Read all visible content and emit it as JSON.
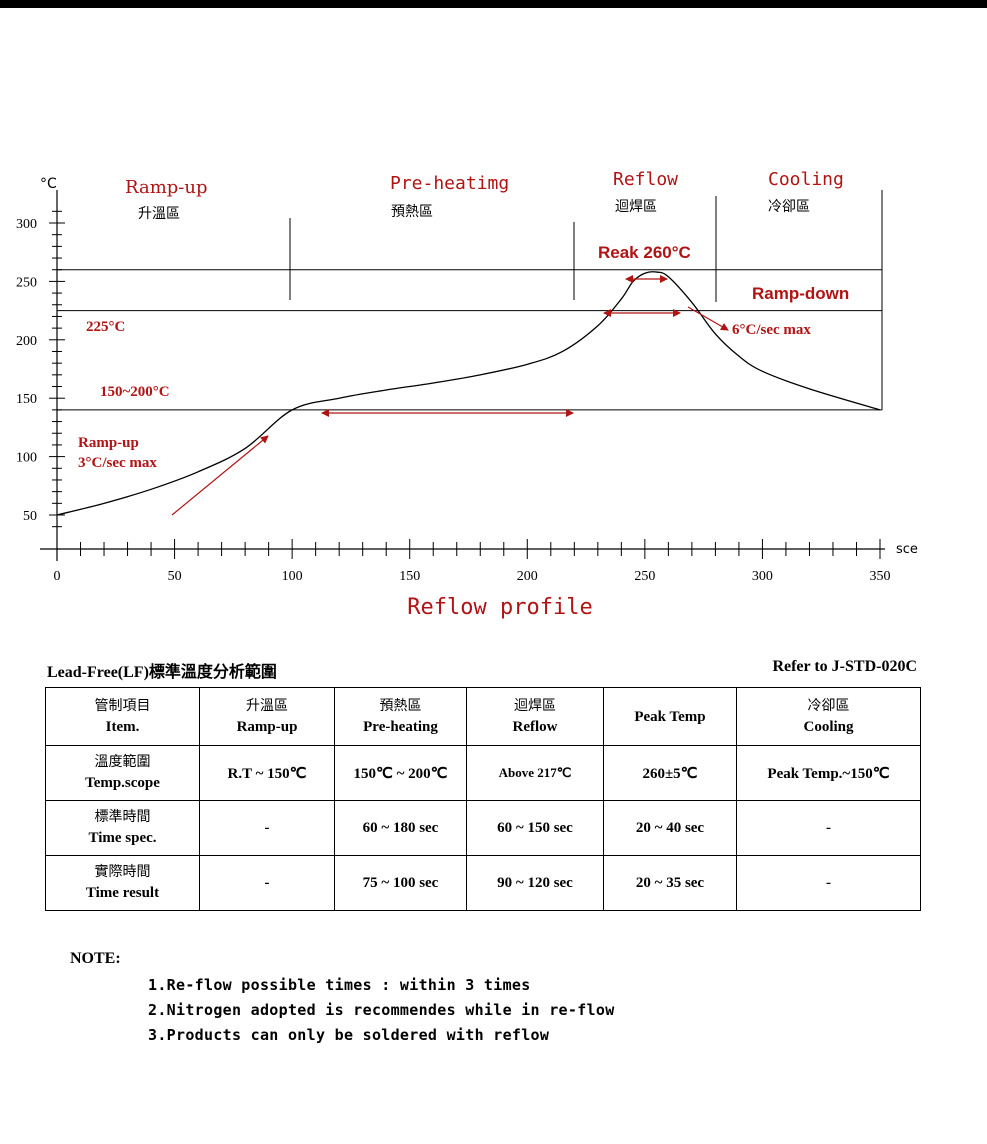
{
  "chart_data": {
    "type": "line",
    "title": "Reflow profile",
    "xlabel": "sce",
    "ylabel": "°C",
    "xlim": [
      0,
      350
    ],
    "ylim": [
      30,
      310
    ],
    "x_ticks": [
      0,
      50,
      100,
      150,
      200,
      250,
      300,
      350
    ],
    "y_ticks": [
      50,
      100,
      150,
      200,
      250,
      300
    ],
    "series": [
      {
        "x": [
          0,
          20,
          40,
          60,
          80,
          100,
          120,
          140,
          160,
          180,
          200,
          215,
          230,
          240,
          245,
          250,
          255,
          260,
          270,
          280,
          290,
          300,
          320,
          350
        ],
        "y": [
          50,
          60,
          72,
          87,
          107,
          140,
          150,
          157,
          163,
          170,
          179,
          190,
          212,
          235,
          250,
          257,
          258,
          254,
          232,
          205,
          186,
          173,
          158,
          140
        ]
      }
    ],
    "hlines": [
      140,
      225,
      260
    ],
    "zones": [
      {
        "en": "Ramp-up",
        "zh": "升溫區"
      },
      {
        "en": "Pre-heatimg",
        "zh": "預熱區"
      },
      {
        "en": "Reflow",
        "zh": "迴焊區"
      },
      {
        "en": "Cooling",
        "zh": "冷卻區"
      }
    ],
    "annotations": {
      "peak": "Reak 260°C",
      "ramp_down": "Ramp-down",
      "t225": "225°C",
      "rate_down": "6°C/sec max",
      "range": "150~200°C",
      "ramp_up_1": "Ramp-up",
      "ramp_up_2": "3°C/sec max"
    }
  },
  "table": {
    "title": "Lead-Free(LF)標準溫度分析範圍",
    "refer": "Refer to J-STD-020C",
    "header": {
      "item_zh": "管制項目",
      "item_en": "Item.",
      "ramp_zh": "升溫區",
      "ramp_en": "Ramp-up",
      "pre_zh": "預熱區",
      "pre_en": "Pre-heating",
      "reflow_zh": "迴焊區",
      "reflow_en": "Reflow",
      "peak": "Peak Temp",
      "cool_zh": "冷卻區",
      "cool_en": "Cooling"
    },
    "rows": [
      {
        "zh": "溫度範圍",
        "en": "Temp.scope",
        "cells": [
          "R.T ~ 150℃",
          "150℃ ~ 200℃",
          "Above 217℃",
          "260±5℃",
          "Peak Temp.~150℃"
        ]
      },
      {
        "zh": "標準時間",
        "en": "Time spec.",
        "cells": [
          "-",
          "60 ~ 180 sec",
          "60 ~ 150 sec",
          "20 ~ 40 sec",
          "-"
        ]
      },
      {
        "zh": "實際時間",
        "en": "Time result",
        "cells": [
          "-",
          "75 ~ 100 sec",
          "90 ~ 120 sec",
          "20 ~ 35 sec",
          "-"
        ]
      }
    ]
  },
  "notes": {
    "title": "NOTE:",
    "items": [
      "1.Re-flow possible times : within 3 times",
      "2.Nitrogen adopted is recommendes while in re-flow",
      "3.Products can only be soldered with reflow"
    ]
  },
  "colors": {
    "accent": "#b01414",
    "ink": "#000000"
  }
}
